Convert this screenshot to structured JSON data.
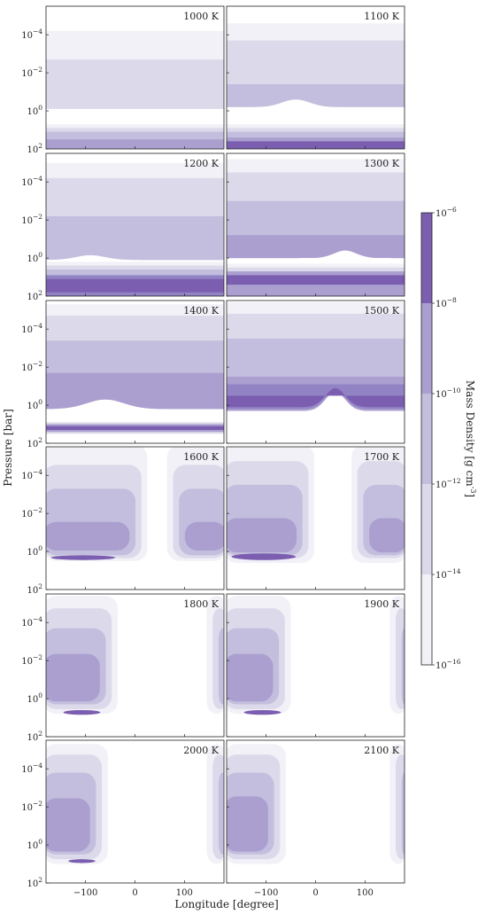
{
  "chart_data": {
    "type": "heatmap",
    "xlabel": "Longitude [degree]",
    "ylabel": "Pressure [bar]",
    "colorbar_label": "Mass Density [g cm^-3]",
    "xlim": [
      -180,
      180
    ],
    "ylim_log10_pressure": [
      2,
      -5.5
    ],
    "x_ticks": [
      -100,
      0,
      100
    ],
    "x_tick_labels": [
      "−100",
      "0",
      "100"
    ],
    "y_ticks_log10": [
      -4,
      -2,
      0,
      2
    ],
    "y_tick_labels": [
      {
        "base": "10",
        "exp": "−4"
      },
      {
        "base": "10",
        "exp": "−2"
      },
      {
        "base": "10",
        "exp": "0"
      },
      {
        "base": "10",
        "exp": "2"
      }
    ],
    "colorbar_ticks": [
      {
        "base": "10",
        "exp": "−6"
      },
      {
        "base": "10",
        "exp": "−8"
      },
      {
        "base": "10",
        "exp": "−10"
      },
      {
        "base": "10",
        "exp": "−12"
      },
      {
        "base": "10",
        "exp": "−14"
      },
      {
        "base": "10",
        "exp": "−16"
      }
    ],
    "level_colors": [
      "#f2f1f7",
      "#dcdaea",
      "#c3bedd",
      "#ab9fd0",
      "#9283c4",
      "#7b5eb0"
    ],
    "panels": [
      {
        "label": "1000 K",
        "mode": "layers",
        "bands": [
          {
            "top": -4.2,
            "bot": -0.3,
            "lev": 0
          },
          {
            "top": -2.7,
            "bot": -0.1,
            "lev": 1
          },
          {
            "top": 0.7,
            "bot": 2,
            "lev": 0
          },
          {
            "top": 0.9,
            "bot": 2,
            "lev": 1
          },
          {
            "top": 1.1,
            "bot": 2,
            "lev": 2
          },
          {
            "top": 1.5,
            "bot": 2,
            "lev": 3
          }
        ],
        "dip": null
      },
      {
        "label": "1100 K",
        "mode": "layers",
        "bands": [
          {
            "top": -4.6,
            "bot": -0.3,
            "lev": 0
          },
          {
            "top": -3.7,
            "bot": -0.2,
            "lev": 1
          },
          {
            "top": -1.4,
            "bot": -0.2,
            "lev": 2
          },
          {
            "top": 0.7,
            "bot": 2,
            "lev": 0
          },
          {
            "top": 0.9,
            "bot": 2,
            "lev": 1
          },
          {
            "top": 1.1,
            "bot": 2,
            "lev": 2
          },
          {
            "top": 1.4,
            "bot": 2,
            "lev": 3
          },
          {
            "top": 1.6,
            "bot": 2,
            "lev": 5
          }
        ],
        "dip": {
          "center": -40,
          "width": 110,
          "depth": 0.4,
          "lev": 2
        }
      },
      {
        "label": "1200 K",
        "mode": "layers",
        "bands": [
          {
            "top": -5.0,
            "bot": -0.1,
            "lev": 0
          },
          {
            "top": -4.2,
            "bot": 0.1,
            "lev": 1
          },
          {
            "top": -2.2,
            "bot": 0.1,
            "lev": 2
          },
          {
            "top": 0.2,
            "bot": 2,
            "lev": 0
          },
          {
            "top": 0.4,
            "bot": 2,
            "lev": 1
          },
          {
            "top": 0.6,
            "bot": 2,
            "lev": 2
          },
          {
            "top": 0.9,
            "bot": 2,
            "lev": 4
          },
          {
            "top": 1.1,
            "bot": 1.8,
            "lev": 5
          }
        ],
        "dip": {
          "center": -90,
          "width": 120,
          "depth": 0.25,
          "lev": 3
        }
      },
      {
        "label": "1300 K",
        "mode": "layers",
        "bands": [
          {
            "top": -5.2,
            "bot": 0.0,
            "lev": 0
          },
          {
            "top": -4.5,
            "bot": 0.0,
            "lev": 1
          },
          {
            "top": -3.0,
            "bot": 0.0,
            "lev": 2
          },
          {
            "top": -1.2,
            "bot": 0.0,
            "lev": 3
          },
          {
            "top": 0.3,
            "bot": 2,
            "lev": 0
          },
          {
            "top": 0.5,
            "bot": 2,
            "lev": 1
          },
          {
            "top": 0.7,
            "bot": 2,
            "lev": 3
          },
          {
            "top": 0.9,
            "bot": 1.4,
            "lev": 5
          }
        ],
        "dip": {
          "center": 60,
          "width": 90,
          "depth": 0.4,
          "lev": 3
        }
      },
      {
        "label": "1400 K",
        "mode": "layers",
        "bands": [
          {
            "top": -5.3,
            "bot": 0.2,
            "lev": 0
          },
          {
            "top": -4.7,
            "bot": 0.2,
            "lev": 1
          },
          {
            "top": -3.4,
            "bot": 0.2,
            "lev": 2
          },
          {
            "top": -1.7,
            "bot": 0.2,
            "lev": 3
          },
          {
            "top": 0.9,
            "bot": 1.5,
            "lev": 1
          },
          {
            "top": 1.0,
            "bot": 1.4,
            "lev": 3
          },
          {
            "top": 1.1,
            "bot": 1.3,
            "lev": 5
          }
        ],
        "dip": {
          "center": -60,
          "width": 150,
          "depth": 0.5,
          "lev": 3
        }
      },
      {
        "label": "1500 K",
        "mode": "layers",
        "bands": [
          {
            "top": -5.4,
            "bot": 0.3,
            "lev": 0
          },
          {
            "top": -4.8,
            "bot": 0.3,
            "lev": 1
          },
          {
            "top": -3.5,
            "bot": 0.3,
            "lev": 2
          },
          {
            "top": -1.5,
            "bot": 0.3,
            "lev": 3
          },
          {
            "top": -1.1,
            "bot": 0.2,
            "lev": 4
          },
          {
            "top": -0.5,
            "bot": 0.1,
            "lev": 5
          }
        ],
        "dip": {
          "center": 40,
          "width": 80,
          "depth": 1.0,
          "lev": 3
        }
      },
      {
        "label": "1600 K",
        "mode": "blobs",
        "bands": [
          {
            "top": -5.6,
            "bot": 0.5,
            "lev": 0
          },
          {
            "top": -4.7,
            "bot": 0.4,
            "lev": 1
          },
          {
            "top": -3.6,
            "bot": 0.3,
            "lev": 2
          },
          {
            "top": -2.0,
            "bot": 0.1,
            "lev": 3
          }
        ],
        "gap": {
          "center": 45,
          "width": 40
        },
        "core": {
          "x0": -170,
          "x1": -40,
          "top": 0.2,
          "bot": 0.45,
          "lev": 5
        }
      },
      {
        "label": "1700 K",
        "mode": "blobs",
        "bands": [
          {
            "top": -5.6,
            "bot": 0.6,
            "lev": 0
          },
          {
            "top": -4.9,
            "bot": 0.4,
            "lev": 1
          },
          {
            "top": -3.8,
            "bot": 0.3,
            "lev": 2
          },
          {
            "top": -2.2,
            "bot": 0.2,
            "lev": 3
          }
        ],
        "gap": {
          "center": 35,
          "width": 75
        },
        "core": {
          "x0": -170,
          "x1": -40,
          "top": 0.1,
          "bot": 0.45,
          "lev": 5
        }
      },
      {
        "label": "1800 K",
        "mode": "blobs",
        "bands": [
          {
            "top": -5.4,
            "bot": 0.8,
            "lev": 0
          },
          {
            "top": -4.9,
            "bot": 0.6,
            "lev": 1
          },
          {
            "top": -4.0,
            "bot": 0.4,
            "lev": 2
          },
          {
            "top": -2.8,
            "bot": 0.3,
            "lev": 3
          }
        ],
        "gap": {
          "center": 55,
          "width": 180
        },
        "core": {
          "x0": -145,
          "x1": -70,
          "top": 0.6,
          "bot": 0.85,
          "lev": 5
        }
      },
      {
        "label": "1900 K",
        "mode": "blobs",
        "bands": [
          {
            "top": -5.4,
            "bot": 0.8,
            "lev": 0
          },
          {
            "top": -4.9,
            "bot": 0.6,
            "lev": 1
          },
          {
            "top": -4.0,
            "bot": 0.4,
            "lev": 2
          },
          {
            "top": -2.8,
            "bot": 0.3,
            "lev": 3
          }
        ],
        "gap": {
          "center": 50,
          "width": 200
        },
        "core": {
          "x0": -145,
          "x1": -70,
          "top": 0.6,
          "bot": 0.85,
          "lev": 5
        }
      },
      {
        "label": "2000 K",
        "mode": "blobs",
        "bands": [
          {
            "top": -5.3,
            "bot": 1.0,
            "lev": 0
          },
          {
            "top": -4.9,
            "bot": 0.8,
            "lev": 1
          },
          {
            "top": -4.1,
            "bot": 0.6,
            "lev": 2
          },
          {
            "top": -2.9,
            "bot": 0.5,
            "lev": 3
          }
        ],
        "gap": {
          "center": 45,
          "width": 200
        },
        "core": {
          "x0": -135,
          "x1": -80,
          "top": 0.75,
          "bot": 0.95,
          "lev": 5
        }
      },
      {
        "label": "2100 K",
        "mode": "blobs",
        "bands": [
          {
            "top": -5.3,
            "bot": 1.0,
            "lev": 0
          },
          {
            "top": -4.9,
            "bot": 0.8,
            "lev": 1
          },
          {
            "top": -4.1,
            "bot": 0.6,
            "lev": 2
          },
          {
            "top": -3.0,
            "bot": 0.5,
            "lev": 3
          }
        ],
        "gap": {
          "center": 45,
          "width": 210
        },
        "core": null
      }
    ]
  }
}
